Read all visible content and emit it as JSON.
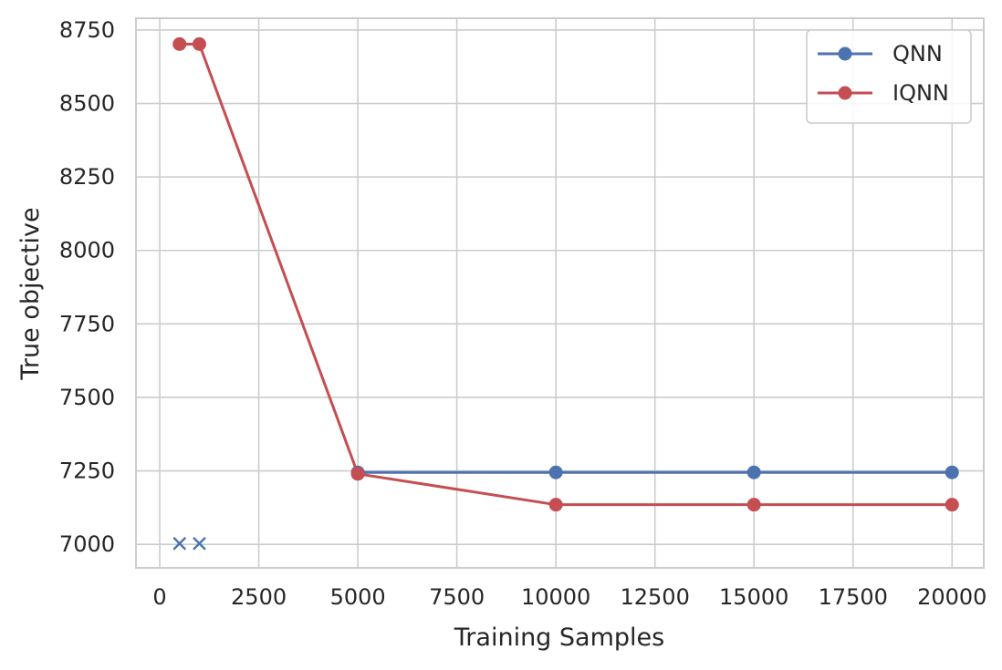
{
  "chart_data": {
    "type": "line",
    "title": "",
    "xlabel": "Training Samples",
    "ylabel": "True objective",
    "xlim": [
      -600,
      20800
    ],
    "ylim": [
      6920,
      8790
    ],
    "x_ticks": [
      0,
      2500,
      5000,
      7500,
      10000,
      12500,
      15000,
      17500,
      20000
    ],
    "y_ticks": [
      7000,
      7250,
      7500,
      7750,
      8000,
      8250,
      8500,
      8750
    ],
    "x_tick_labels": [
      "0",
      "2500",
      "5000",
      "7500",
      "10000",
      "12500",
      "15000",
      "17500",
      "20000"
    ],
    "y_tick_labels": [
      "7000",
      "7250",
      "7500",
      "7750",
      "8000",
      "8250",
      "8500",
      "8750"
    ],
    "grid": true,
    "legend_position": "top-right",
    "series": [
      {
        "name": "QNN",
        "color": "#4c72b0",
        "marker": "circle",
        "points": [
          [
            5000,
            7245
          ],
          [
            10000,
            7245
          ],
          [
            15000,
            7245
          ],
          [
            20000,
            7245
          ]
        ]
      },
      {
        "name": "IQNN",
        "color": "#c44e52",
        "marker": "circle",
        "points": [
          [
            500,
            8702
          ],
          [
            1000,
            8702
          ],
          [
            5000,
            7240
          ],
          [
            10000,
            7135
          ],
          [
            15000,
            7135
          ],
          [
            20000,
            7135
          ]
        ]
      }
    ],
    "failed_markers": {
      "series": "QNN",
      "color": "#4c72b0",
      "marker": "x",
      "points": [
        [
          500,
          7003
        ],
        [
          1000,
          7003
        ]
      ]
    }
  }
}
